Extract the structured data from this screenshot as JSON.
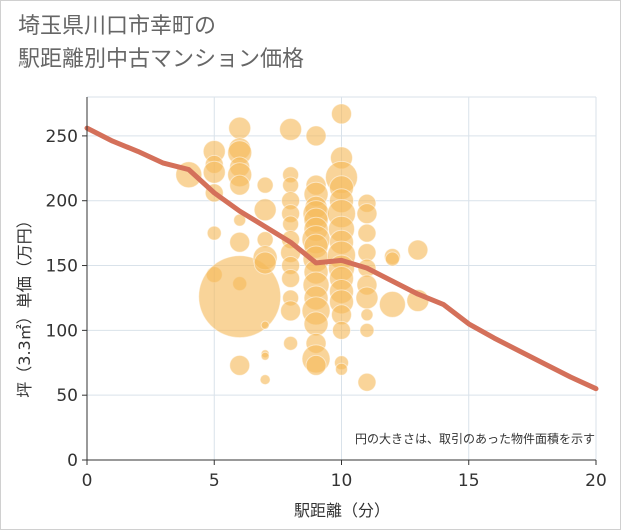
{
  "title_line1": "埼玉県川口市幸町の",
  "title_line2": "駅距離別中古マンション価格",
  "chart_data": {
    "type": "scatter",
    "xlabel": "駅距離（分）",
    "ylabel": "坪（3.3㎡）単価（万円）",
    "note": "円の大きさは、取引のあった物件面積を示す",
    "xlim": [
      0,
      20
    ],
    "ylim": [
      0,
      280
    ],
    "xticks": [
      "0",
      "5",
      "10",
      "15",
      "20"
    ],
    "yticks": [
      "0",
      "50",
      "100",
      "150",
      "200",
      "250"
    ],
    "xtick_values": [
      0,
      5,
      10,
      15,
      20
    ],
    "ytick_values": [
      0,
      50,
      100,
      150,
      200,
      250
    ],
    "grid": true,
    "bubble_color": "#f5b95a",
    "line_color": "#d4705a",
    "trend_line": [
      {
        "x": 0,
        "y": 256
      },
      {
        "x": 1,
        "y": 246
      },
      {
        "x": 2,
        "y": 238
      },
      {
        "x": 3,
        "y": 229
      },
      {
        "x": 4,
        "y": 224
      },
      {
        "x": 5,
        "y": 206
      },
      {
        "x": 6,
        "y": 192
      },
      {
        "x": 7,
        "y": 180
      },
      {
        "x": 8,
        "y": 168
      },
      {
        "x": 9,
        "y": 152
      },
      {
        "x": 10,
        "y": 154
      },
      {
        "x": 11,
        "y": 148
      },
      {
        "x": 12,
        "y": 138
      },
      {
        "x": 13,
        "y": 128
      },
      {
        "x": 14,
        "y": 120
      },
      {
        "x": 15,
        "y": 105
      },
      {
        "x": 16,
        "y": 94
      },
      {
        "x": 17,
        "y": 84
      },
      {
        "x": 18,
        "y": 74
      },
      {
        "x": 19,
        "y": 64
      },
      {
        "x": 20,
        "y": 55
      }
    ],
    "points": [
      {
        "x": 4,
        "y": 220,
        "s": 13
      },
      {
        "x": 5,
        "y": 238,
        "s": 11
      },
      {
        "x": 5,
        "y": 228,
        "s": 9
      },
      {
        "x": 5,
        "y": 222,
        "s": 11
      },
      {
        "x": 5,
        "y": 206,
        "s": 9
      },
      {
        "x": 5,
        "y": 175,
        "s": 7
      },
      {
        "x": 5,
        "y": 143,
        "s": 8
      },
      {
        "x": 6,
        "y": 256,
        "s": 11
      },
      {
        "x": 6,
        "y": 240,
        "s": 11
      },
      {
        "x": 6,
        "y": 237,
        "s": 12
      },
      {
        "x": 6,
        "y": 226,
        "s": 10
      },
      {
        "x": 6,
        "y": 220,
        "s": 12
      },
      {
        "x": 6,
        "y": 212,
        "s": 10
      },
      {
        "x": 6,
        "y": 185,
        "s": 6
      },
      {
        "x": 6,
        "y": 168,
        "s": 10
      },
      {
        "x": 6,
        "y": 136,
        "s": 7
      },
      {
        "x": 6,
        "y": 126,
        "s": 41
      },
      {
        "x": 6,
        "y": 73,
        "s": 10
      },
      {
        "x": 7,
        "y": 212,
        "s": 8
      },
      {
        "x": 7,
        "y": 193,
        "s": 11
      },
      {
        "x": 7,
        "y": 170,
        "s": 8
      },
      {
        "x": 7,
        "y": 156,
        "s": 12
      },
      {
        "x": 7,
        "y": 152,
        "s": 11
      },
      {
        "x": 7,
        "y": 104,
        "s": 4
      },
      {
        "x": 7,
        "y": 82,
        "s": 4
      },
      {
        "x": 7,
        "y": 80,
        "s": 4
      },
      {
        "x": 7,
        "y": 62,
        "s": 5
      },
      {
        "x": 8,
        "y": 255,
        "s": 11
      },
      {
        "x": 8,
        "y": 220,
        "s": 8
      },
      {
        "x": 8,
        "y": 212,
        "s": 8
      },
      {
        "x": 8,
        "y": 200,
        "s": 9
      },
      {
        "x": 8,
        "y": 190,
        "s": 9
      },
      {
        "x": 8,
        "y": 182,
        "s": 8
      },
      {
        "x": 8,
        "y": 170,
        "s": 9
      },
      {
        "x": 8,
        "y": 160,
        "s": 10
      },
      {
        "x": 8,
        "y": 150,
        "s": 9
      },
      {
        "x": 8,
        "y": 140,
        "s": 9
      },
      {
        "x": 8,
        "y": 125,
        "s": 8
      },
      {
        "x": 8,
        "y": 115,
        "s": 10
      },
      {
        "x": 8,
        "y": 90,
        "s": 7
      },
      {
        "x": 9,
        "y": 250,
        "s": 10
      },
      {
        "x": 9,
        "y": 212,
        "s": 10
      },
      {
        "x": 9,
        "y": 205,
        "s": 12
      },
      {
        "x": 9,
        "y": 195,
        "s": 11
      },
      {
        "x": 9,
        "y": 190,
        "s": 13
      },
      {
        "x": 9,
        "y": 185,
        "s": 12
      },
      {
        "x": 9,
        "y": 178,
        "s": 12
      },
      {
        "x": 9,
        "y": 170,
        "s": 14
      },
      {
        "x": 9,
        "y": 165,
        "s": 12
      },
      {
        "x": 9,
        "y": 155,
        "s": 13
      },
      {
        "x": 9,
        "y": 145,
        "s": 12
      },
      {
        "x": 9,
        "y": 135,
        "s": 13
      },
      {
        "x": 9,
        "y": 125,
        "s": 12
      },
      {
        "x": 9,
        "y": 115,
        "s": 14
      },
      {
        "x": 9,
        "y": 105,
        "s": 12
      },
      {
        "x": 9,
        "y": 90,
        "s": 10
      },
      {
        "x": 9,
        "y": 78,
        "s": 14
      },
      {
        "x": 9,
        "y": 73,
        "s": 10
      },
      {
        "x": 10,
        "y": 267,
        "s": 10
      },
      {
        "x": 10,
        "y": 233,
        "s": 11
      },
      {
        "x": 10,
        "y": 218,
        "s": 16
      },
      {
        "x": 10,
        "y": 210,
        "s": 12
      },
      {
        "x": 10,
        "y": 200,
        "s": 12
      },
      {
        "x": 10,
        "y": 190,
        "s": 14
      },
      {
        "x": 10,
        "y": 178,
        "s": 13
      },
      {
        "x": 10,
        "y": 168,
        "s": 12
      },
      {
        "x": 10,
        "y": 158,
        "s": 14
      },
      {
        "x": 10,
        "y": 148,
        "s": 13
      },
      {
        "x": 10,
        "y": 140,
        "s": 12
      },
      {
        "x": 10,
        "y": 130,
        "s": 12
      },
      {
        "x": 10,
        "y": 122,
        "s": 12
      },
      {
        "x": 10,
        "y": 112,
        "s": 10
      },
      {
        "x": 10,
        "y": 100,
        "s": 9
      },
      {
        "x": 10,
        "y": 75,
        "s": 7
      },
      {
        "x": 10,
        "y": 70,
        "s": 6
      },
      {
        "x": 11,
        "y": 198,
        "s": 9
      },
      {
        "x": 11,
        "y": 190,
        "s": 10
      },
      {
        "x": 11,
        "y": 175,
        "s": 9
      },
      {
        "x": 11,
        "y": 160,
        "s": 9
      },
      {
        "x": 11,
        "y": 148,
        "s": 9
      },
      {
        "x": 11,
        "y": 135,
        "s": 10
      },
      {
        "x": 11,
        "y": 125,
        "s": 11
      },
      {
        "x": 11,
        "y": 112,
        "s": 6
      },
      {
        "x": 11,
        "y": 100,
        "s": 7
      },
      {
        "x": 11,
        "y": 60,
        "s": 9
      },
      {
        "x": 12,
        "y": 157,
        "s": 8
      },
      {
        "x": 12,
        "y": 155,
        "s": 7
      },
      {
        "x": 12,
        "y": 120,
        "s": 13
      },
      {
        "x": 13,
        "y": 162,
        "s": 10
      },
      {
        "x": 13,
        "y": 123,
        "s": 11
      }
    ]
  }
}
